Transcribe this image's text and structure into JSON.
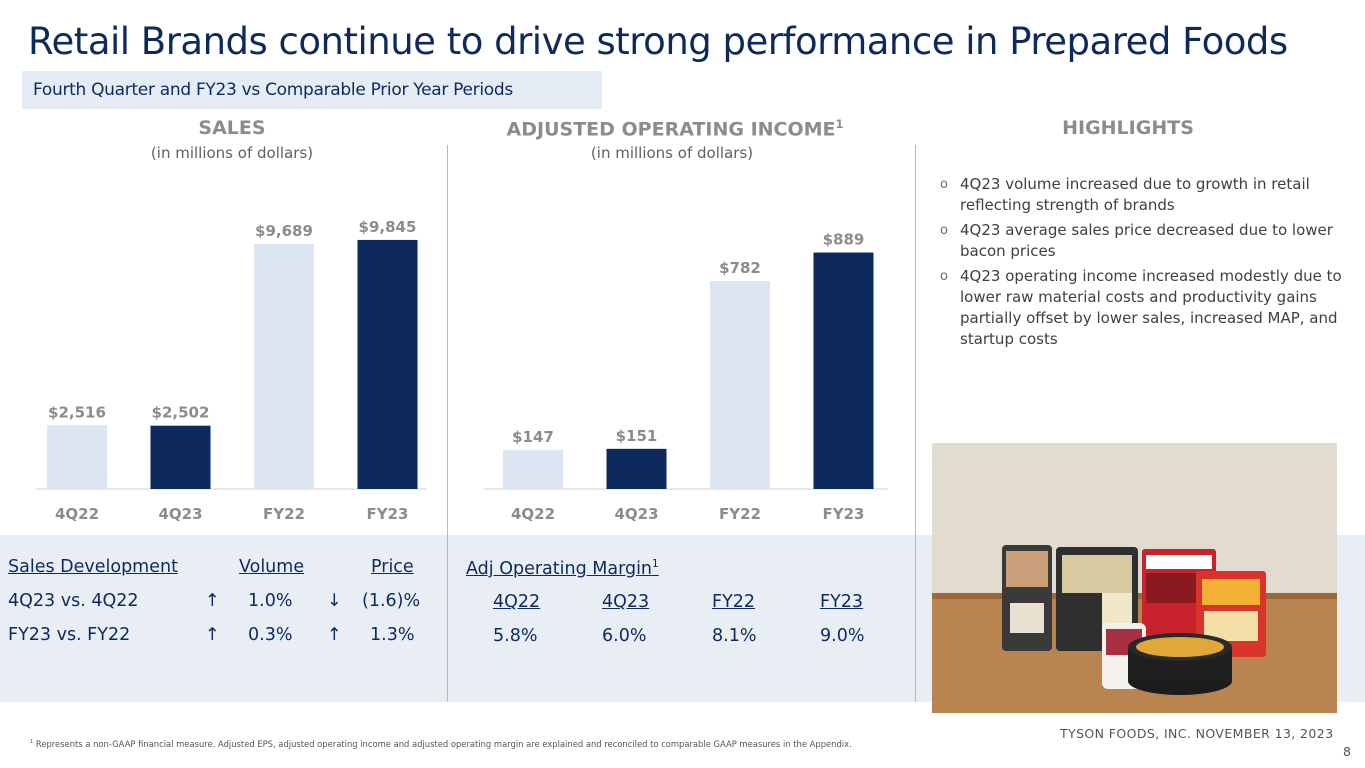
{
  "title": "Retail Brands continue to drive strong performance in Prepared Foods",
  "subtitle": "Fourth Quarter and FY23 vs Comparable Prior Year Periods",
  "sections": {
    "sales": {
      "title": "SALES",
      "sub": "(in millions of dollars)"
    },
    "aoi": {
      "title": "ADJUSTED OPERATING INCOME",
      "title_sup": "1",
      "sub": "(in millions of dollars)"
    },
    "highlights": {
      "title": "HIGHLIGHTS"
    }
  },
  "colors": {
    "light_bar": "#dce5f1",
    "dark_bar": "#0e2a5c",
    "title": "#0e2a5c",
    "band": "#e9eef5"
  },
  "chart_data": [
    {
      "type": "bar",
      "title": "SALES",
      "subtitle": "(in millions of dollars)",
      "categories": [
        "4Q22",
        "4Q23",
        "FY22",
        "FY23"
      ],
      "values": [
        2516,
        2502,
        9689,
        9845
      ],
      "labels": [
        "$2,516",
        "$2,502",
        "$9,689",
        "$9,845"
      ],
      "bar_colors": [
        "#dce5f1",
        "#0e2a5c",
        "#dce5f1",
        "#0e2a5c"
      ],
      "ylim": [
        0,
        10000
      ]
    },
    {
      "type": "bar",
      "title": "ADJUSTED OPERATING INCOME",
      "subtitle": "(in millions of dollars)",
      "categories": [
        "4Q22",
        "4Q23",
        "FY22",
        "FY23"
      ],
      "values": [
        147,
        151,
        782,
        889
      ],
      "labels": [
        "$147",
        "$151",
        "$782",
        "$889"
      ],
      "bar_colors": [
        "#dce5f1",
        "#0e2a5c",
        "#dce5f1",
        "#0e2a5c"
      ],
      "ylim": [
        0,
        1000
      ]
    }
  ],
  "highlights": [
    "4Q23 volume increased due to growth in retail reflecting strength of brands",
    "4Q23 average sales price decreased due to lower bacon prices",
    "4Q23 operating income increased modestly due to lower raw material costs and productivity gains partially offset by lower sales, increased MAP, and startup costs"
  ],
  "highlight_bullet": "o",
  "sales_dev": {
    "header": "Sales Development",
    "volume_header": "Volume",
    "price_header": "Price",
    "rows": [
      {
        "label": "4Q23 vs. 4Q22",
        "vol_arrow": "↑",
        "vol": "1.0%",
        "price_arrow": "↓",
        "price": "(1.6)%"
      },
      {
        "label": "FY23 vs. FY22",
        "vol_arrow": "↑",
        "vol": "0.3%",
        "price_arrow": "↑",
        "price": "1.3%"
      }
    ]
  },
  "margin": {
    "header": "Adj Operating Margin",
    "header_sup": "1",
    "periods": [
      "4Q22",
      "4Q23",
      "FY22",
      "FY23"
    ],
    "values": [
      "5.8%",
      "6.0%",
      "8.1%",
      "9.0%"
    ]
  },
  "footer": {
    "company": "TYSON FOODS, INC. NOVEMBER 13, 2023",
    "page": "8",
    "footnote_sup": "1",
    "footnote": "Represents a non-GAAP financial measure. Adjusted EPS, adjusted operating income and adjusted operating margin are explained and reconciled to comparable GAAP measures in the Appendix."
  }
}
